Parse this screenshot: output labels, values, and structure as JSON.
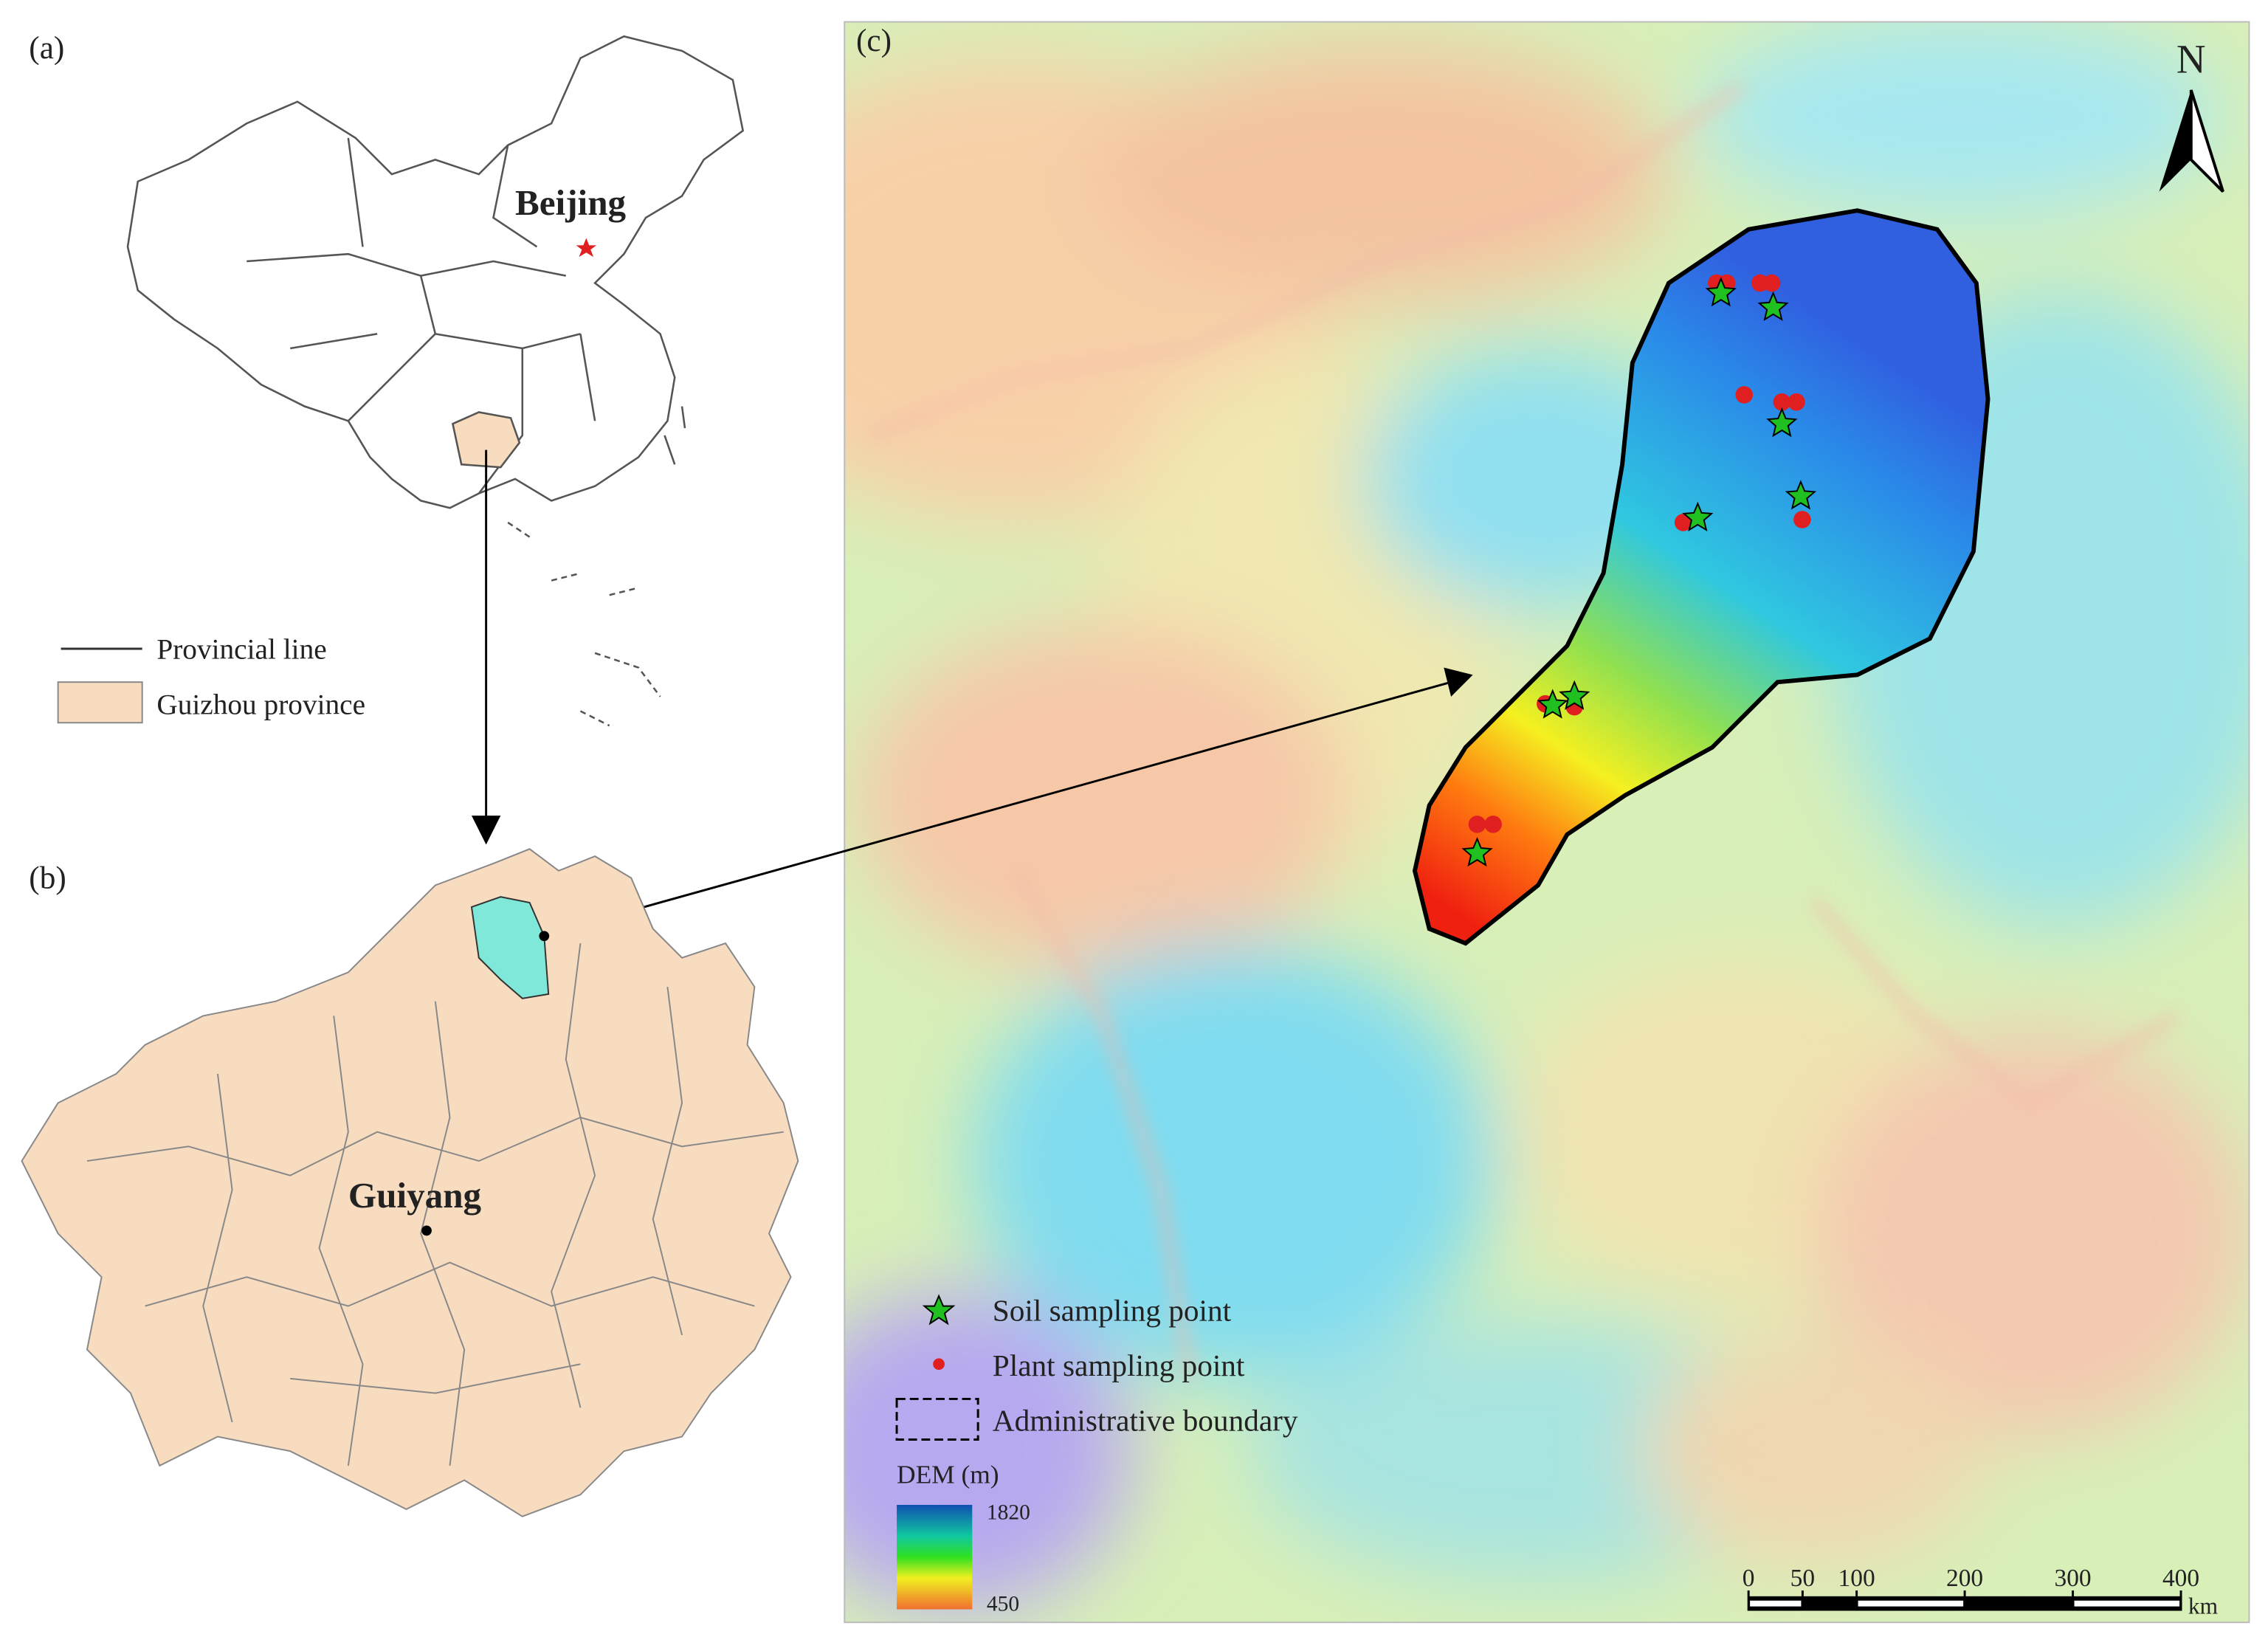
{
  "panels": {
    "a": "(a)",
    "b": "(b)",
    "c": "(c)"
  },
  "map_a": {
    "city": "Beijing",
    "legend": {
      "line": "Provincial line",
      "fill": "Guizhou province"
    }
  },
  "map_b": {
    "city": "Guiyang"
  },
  "map_c": {
    "north": "N",
    "legend": {
      "soil": "Soil sampling point",
      "plant": "Plant sampling point",
      "boundary": "Administrative boundary",
      "dem_title": "DEM (m)",
      "dem_max": 1820,
      "dem_min": 450
    },
    "scale_bar": {
      "ticks": [
        0,
        50,
        100,
        200,
        300,
        400
      ],
      "unit": "km"
    }
  }
}
